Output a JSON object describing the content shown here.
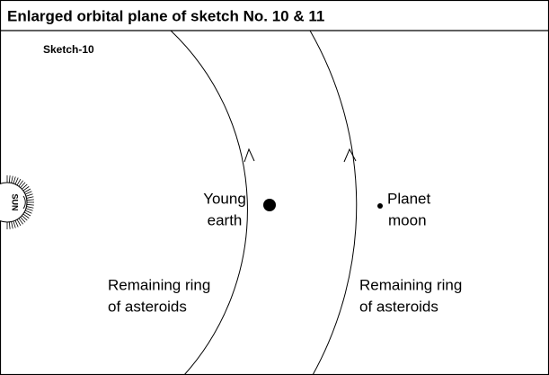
{
  "header": {
    "title": "Enlarged orbital plane of sketch No. 10 & 11"
  },
  "sketch_label": "Sketch-10",
  "sun": {
    "label": "SUN"
  },
  "bodies": [
    {
      "label_lines": [
        "Young",
        "earth"
      ]
    },
    {
      "label_lines": [
        "Planet",
        "moon"
      ]
    }
  ],
  "rings": [
    {
      "label_lines": [
        "Remaining ring",
        "of asteroids"
      ]
    },
    {
      "label_lines": [
        "Remaining ring",
        "of asteroids"
      ]
    }
  ]
}
